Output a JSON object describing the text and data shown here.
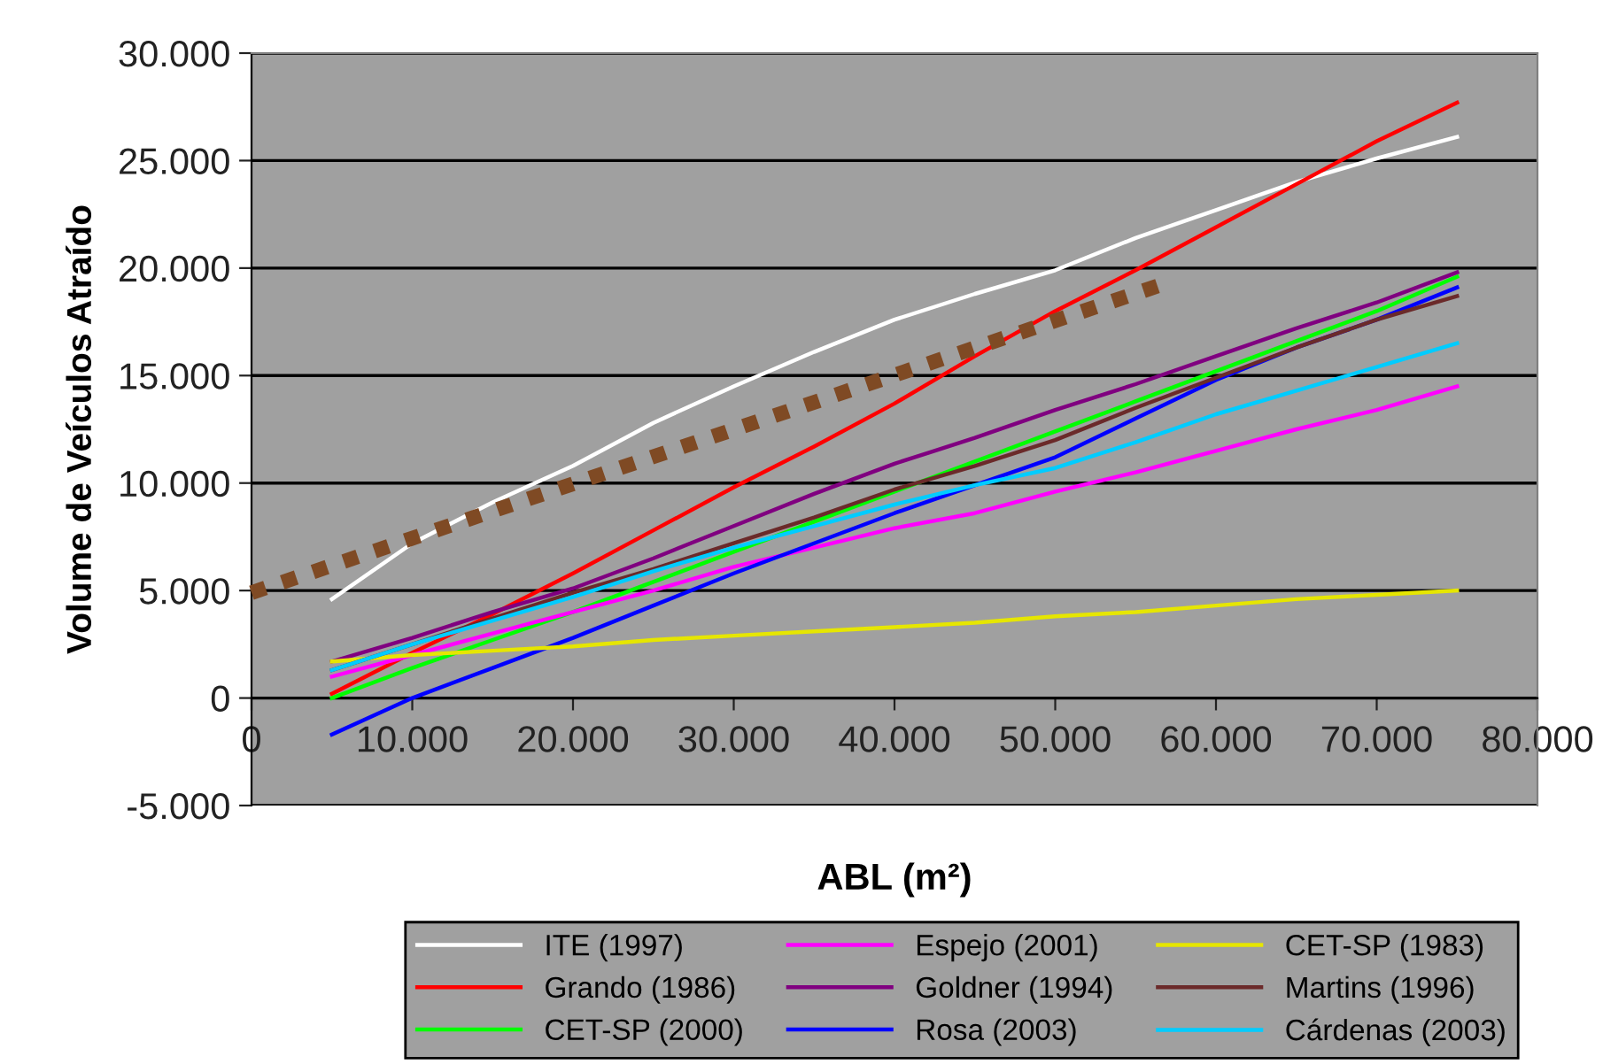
{
  "chart_data": {
    "type": "line",
    "xlabel": "ABL (m²)",
    "ylabel": "Volume de Veículos Atraído",
    "x": [
      5000,
      10000,
      15000,
      20000,
      25000,
      30000,
      35000,
      40000,
      45000,
      50000,
      55000,
      60000,
      65000,
      70000,
      75000
    ],
    "xlim": [
      0,
      80000
    ],
    "xticks": [
      {
        "value": 0,
        "label": "0"
      },
      {
        "value": 10000,
        "label": "10.000"
      },
      {
        "value": 20000,
        "label": "20.000"
      },
      {
        "value": 30000,
        "label": "30.000"
      },
      {
        "value": 40000,
        "label": "40.000"
      },
      {
        "value": 50000,
        "label": "50.000"
      },
      {
        "value": 60000,
        "label": "60.000"
      },
      {
        "value": 70000,
        "label": "70.000"
      },
      {
        "value": 80000,
        "label": "80.000"
      }
    ],
    "ylim": [
      -5000,
      30000
    ],
    "yticks": [
      {
        "value": -5000,
        "label": "-5.000"
      },
      {
        "value": 0,
        "label": "0"
      },
      {
        "value": 5000,
        "label": "5.000"
      },
      {
        "value": 10000,
        "label": "10.000"
      },
      {
        "value": 15000,
        "label": "15.000"
      },
      {
        "value": 20000,
        "label": "20.000"
      },
      {
        "value": 25000,
        "label": "25.000"
      },
      {
        "value": 30000,
        "label": "30.000"
      }
    ],
    "grid": "y",
    "legend": "bottom",
    "series": [
      {
        "name": "ITE (1997)",
        "color": "#ffffff",
        "values": [
          4600,
          7200,
          9100,
          10800,
          12800,
          14500,
          16100,
          17600,
          18800,
          19900,
          21400,
          22700,
          24000,
          25100,
          26100
        ]
      },
      {
        "name": "Grando (1986)",
        "color": "#ff0000",
        "values": [
          200,
          2100,
          3900,
          5800,
          7800,
          9800,
          11700,
          13700,
          15900,
          18000,
          19900,
          21900,
          23900,
          25900,
          27700
        ]
      },
      {
        "name": "CET-SP (2000)",
        "color": "#00ff00",
        "values": [
          0,
          1400,
          2700,
          4000,
          5400,
          6800,
          8200,
          9600,
          11000,
          12400,
          13800,
          15200,
          16600,
          18000,
          19600
        ]
      },
      {
        "name": "Espejo (2001)",
        "color": "#ff00ff",
        "values": [
          1000,
          2000,
          3000,
          4000,
          5000,
          6100,
          7000,
          7900,
          8600,
          9600,
          10500,
          11500,
          12500,
          13400,
          14500
        ]
      },
      {
        "name": "Goldner (1994)",
        "color": "#800080",
        "values": [
          1700,
          2800,
          4000,
          5100,
          6500,
          8000,
          9500,
          10900,
          12100,
          13400,
          14600,
          15900,
          17200,
          18400,
          19800
        ]
      },
      {
        "name": "Rosa (2003)",
        "color": "#0000ff",
        "values": [
          -1700,
          0,
          1400,
          2800,
          4300,
          5800,
          7200,
          8600,
          9900,
          11200,
          13000,
          14800,
          16300,
          17600,
          19100
        ]
      },
      {
        "name": "CET-SP (1983)",
        "color": "#e6e600",
        "values": [
          1700,
          2000,
          2200,
          2400,
          2700,
          2900,
          3100,
          3300,
          3500,
          3800,
          4000,
          4300,
          4600,
          4800,
          5000
        ]
      },
      {
        "name": "Martins (1996)",
        "color": "#6b2a2a",
        "values": [
          1300,
          2500,
          3700,
          4900,
          6000,
          7200,
          8400,
          9700,
          10800,
          12000,
          13500,
          14900,
          16300,
          17600,
          18700
        ]
      },
      {
        "name": "Cárdenas (2003)",
        "color": "#00ccff",
        "values": [
          1300,
          2500,
          3600,
          4700,
          5900,
          7000,
          8000,
          9000,
          9900,
          10700,
          11900,
          13200,
          14300,
          15400,
          16500
        ]
      },
      {
        "color": "#7f4a24",
        "x": [
          0,
          56500
        ],
        "values": [
          4900,
          19200
        ],
        "line_style": "dotted"
      }
    ]
  }
}
